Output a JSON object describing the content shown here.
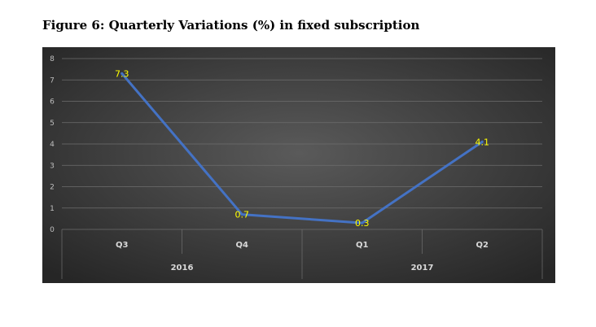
{
  "figure": {
    "title": "Figure 6: Quarterly Variations (%) in fixed subscription"
  },
  "chart_data": {
    "type": "line",
    "categories": [
      "Q3",
      "Q4",
      "Q1",
      "Q2"
    ],
    "groups": [
      {
        "label": "2016",
        "categories": [
          "Q3",
          "Q4"
        ]
      },
      {
        "label": "2017",
        "categories": [
          "Q1",
          "Q2"
        ]
      }
    ],
    "series": [
      {
        "values": [
          7.3,
          0.7,
          0.3,
          4.1
        ],
        "color": "#4472c4"
      }
    ],
    "data_labels": [
      "7.3",
      "0.7",
      "0.3",
      "4.1"
    ],
    "ylim": [
      0,
      8
    ],
    "yticks": [
      "0",
      "1",
      "2",
      "3",
      "4",
      "5",
      "6",
      "7",
      "8"
    ],
    "grid": true,
    "background_colors": [
      "#5a5a5a",
      "#262626"
    ],
    "data_label_color": "#ffff00"
  }
}
